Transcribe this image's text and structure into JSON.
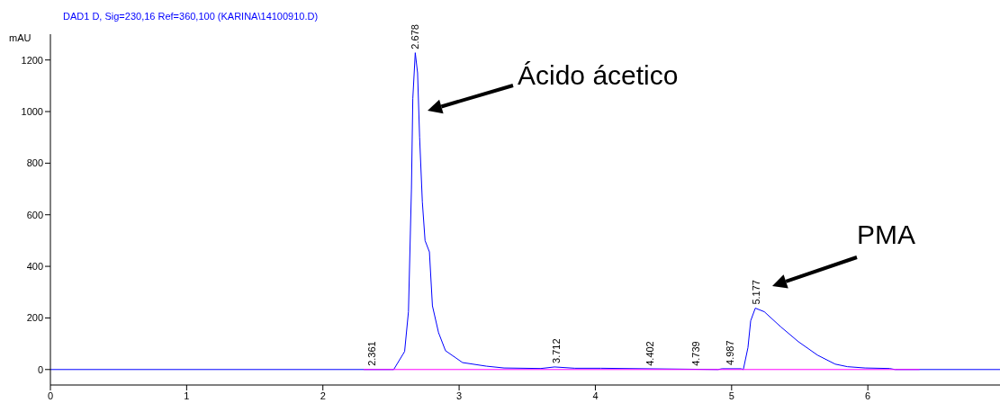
{
  "chart_data": {
    "type": "line",
    "title": "DAD1 D, Sig=230,16 Ref=360,100 (KARINA\\14100910.D)",
    "ylabel": "mAU",
    "xlim": [
      0,
      6.97
    ],
    "xticks": [
      0,
      1,
      2,
      3,
      4,
      5,
      6
    ],
    "ylim": [
      -60,
      1300
    ],
    "yticks": [
      0,
      200,
      400,
      600,
      800,
      1000,
      1200
    ],
    "grid": false,
    "marker": "none",
    "line_style": "solid",
    "series": [
      {
        "color": "#0000ff",
        "x": [
          0,
          2.5,
          2.52,
          2.6,
          2.628,
          2.65,
          2.66,
          2.678,
          2.695,
          2.71,
          2.73,
          2.75,
          2.782,
          2.804,
          2.849,
          2.9,
          3.025,
          3.2,
          3.33,
          3.6,
          3.7,
          3.85,
          4.04,
          4.9,
          4.93,
          5.07,
          5.086,
          5.12,
          5.14,
          5.174,
          5.24,
          5.36,
          5.49,
          5.63,
          5.76,
          5.85,
          5.98,
          6.16,
          6.2,
          6.97
        ],
        "values": [
          0,
          0,
          0,
          70,
          224,
          700,
          1050,
          1228,
          1150,
          900,
          650,
          500,
          456,
          247,
          143,
          73,
          27,
          13,
          6,
          4,
          10,
          5,
          5,
          0,
          3,
          3,
          0,
          85,
          189,
          238,
          224,
          166,
          108,
          56,
          21,
          11,
          6,
          4,
          0,
          0
        ]
      },
      {
        "color": "#ff00ff",
        "x": [
          2.3,
          6.38
        ],
        "values": [
          0,
          0
        ]
      }
    ],
    "annotations": [
      "Ácido ácetico",
      "PMA",
      {
        "text": "2.361",
        "x": 2.361,
        "y": 0
      },
      {
        "text": "2.678",
        "x": 2.678,
        "y": 1228
      },
      {
        "text": "3.712",
        "x": 3.712,
        "y": 10
      },
      {
        "text": "4.402",
        "x": 4.402,
        "y": 0
      },
      {
        "text": "4.739",
        "x": 4.739,
        "y": 0
      },
      {
        "text": "4.987",
        "x": 4.987,
        "y": 3
      },
      {
        "text": "5.177",
        "x": 5.177,
        "y": 238
      }
    ]
  }
}
